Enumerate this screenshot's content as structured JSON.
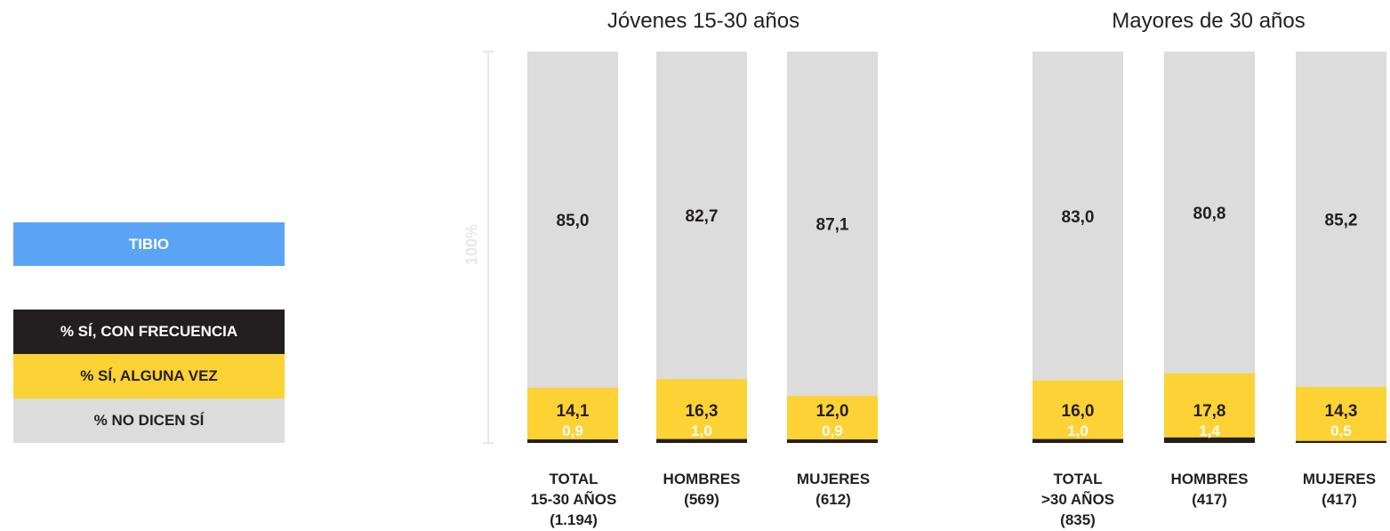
{
  "legend": {
    "tibio": "TIBIO",
    "frecuencia": "% SÍ, CON FRECUENCIA",
    "alguna_vez": "% SÍ, ALGUNA VEZ",
    "no_dicen": "% NO DICEN SÍ"
  },
  "colors": {
    "tibio": "#5ba3f5",
    "frecuencia": "#231f20",
    "alguna_vez": "#fdd234",
    "no_dicen": "#dcdcdc",
    "axis": "#e0e0e0"
  },
  "chart_data": {
    "type": "bar",
    "stacked": true,
    "ylabel": "100%",
    "ylim": [
      0,
      100
    ],
    "groups": [
      {
        "title": "Jóvenes 15-30 años",
        "categories": [
          0,
          1,
          2
        ]
      },
      {
        "title": "Mayores de 30 años",
        "categories": [
          3,
          4,
          5
        ]
      }
    ],
    "categories": [
      "TOTAL\n15-30 AÑOS\n(1.194)",
      "HOMBRES\n(569)",
      "MUJERES\n(612)",
      "TOTAL\n>30 AÑOS\n(835)",
      "HOMBRES\n(417)",
      "MUJERES\n(417)"
    ],
    "series": [
      {
        "name": "% SÍ, CON FRECUENCIA",
        "values": [
          0.9,
          1.0,
          0.9,
          1.0,
          1.4,
          0.5
        ]
      },
      {
        "name": "% SÍ, ALGUNA VEZ",
        "values": [
          14.1,
          16.3,
          12.0,
          16.0,
          17.8,
          14.3
        ]
      },
      {
        "name": "% NO DICEN SÍ",
        "values": [
          85.0,
          82.7,
          87.1,
          83.0,
          80.8,
          85.2
        ]
      }
    ],
    "labels": {
      "frecuencia": [
        "0,9",
        "1,0",
        "0,9",
        "1,0",
        "1,4",
        "0,5"
      ],
      "alguna_vez": [
        "14,1",
        "16,3",
        "12,0",
        "16,0",
        "17,8",
        "14,3"
      ],
      "no_dicen": [
        "85,0",
        "82,7",
        "87,1",
        "83,0",
        "80,8",
        "85,2"
      ]
    }
  }
}
